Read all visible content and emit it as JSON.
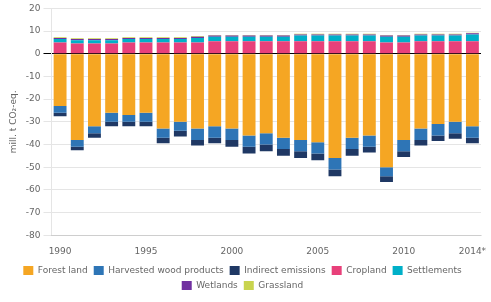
{
  "chart_data": {
    "type": "bar",
    "stacked": true,
    "y_label": "mill. t CO₂-eq.",
    "categories": [
      "1990",
      null,
      null,
      null,
      null,
      "1995",
      null,
      null,
      null,
      null,
      "2000",
      null,
      null,
      null,
      null,
      "2005",
      null,
      null,
      null,
      null,
      "2010",
      null,
      null,
      null,
      "2014*"
    ],
    "series": [
      {
        "name": "Forest land",
        "color": "#F5A623",
        "values": [
          -23,
          -38,
          -32,
          -26,
          -27,
          -26,
          -33,
          -30,
          -33,
          -32,
          -33,
          -36,
          -35,
          -37,
          -38,
          -39,
          -46,
          -37,
          -36,
          -50,
          -38,
          -33,
          -31,
          -30,
          -32
        ]
      },
      {
        "name": "Harvested wood products",
        "color": "#2E75B6",
        "values": [
          -3,
          -3,
          -3,
          -4,
          -3,
          -4,
          -4,
          -4,
          -5,
          -5,
          -5,
          -5,
          -5,
          -5,
          -5,
          -5,
          -5,
          -5,
          -5,
          -4,
          -5,
          -5,
          -5,
          -5,
          -5
        ]
      },
      {
        "name": "Indirect emissions",
        "color": "#1F3864",
        "values": [
          -1.5,
          -1.5,
          -2.0,
          -2.0,
          -2.0,
          -2.0,
          -2.5,
          -2.5,
          -2.5,
          -2.5,
          -3.0,
          -3.0,
          -3.0,
          -3.0,
          -3.0,
          -3.0,
          -3.0,
          -3.0,
          -2.5,
          -2.5,
          -2.5,
          -2.5,
          -2.5,
          -2.5,
          -2.5
        ]
      },
      {
        "name": "Cropland",
        "color": "#E8407A",
        "values": [
          5.0,
          4.5,
          4.5,
          4.5,
          5.0,
          5.0,
          5.0,
          5.0,
          5.0,
          5.5,
          5.5,
          5.5,
          5.5,
          5.5,
          5.5,
          5.5,
          5.5,
          5.5,
          5.5,
          5.0,
          5.0,
          5.5,
          5.5,
          5.5,
          5.5
        ]
      },
      {
        "name": "Settlements",
        "color": "#00B0C8",
        "values": [
          1.5,
          1.5,
          1.5,
          1.5,
          1.5,
          1.5,
          1.5,
          1.5,
          2.0,
          2.0,
          2.0,
          2.0,
          2.0,
          2.0,
          2.5,
          2.5,
          2.5,
          2.5,
          2.5,
          2.5,
          2.5,
          2.5,
          2.5,
          2.5,
          3.0
        ]
      },
      {
        "name": "Wetlands",
        "color": "#7030A0",
        "values": [
          0.5,
          0.5,
          0.5,
          0.5,
          0.5,
          0.5,
          0.5,
          0.5,
          0.5,
          0.5,
          0.5,
          0.5,
          0.5,
          0.5,
          0.5,
          0.5,
          0.5,
          0.5,
          0.5,
          0.5,
          0.5,
          0.5,
          0.5,
          0.5,
          0.5
        ]
      },
      {
        "name": "Grassland",
        "color": "#C9D44E",
        "values": [
          0.3,
          0.3,
          0.3,
          0.3,
          0.3,
          0.3,
          0.3,
          0.3,
          0.3,
          0.3,
          0.3,
          0.3,
          0.3,
          0.3,
          0.3,
          0.3,
          0.3,
          0.3,
          0.3,
          0.3,
          0.3,
          0.3,
          0.3,
          0.3,
          0.3
        ]
      }
    ],
    "ylim": [
      -80,
      20
    ],
    "yticks": [
      -80,
      -70,
      -60,
      -50,
      -40,
      -30,
      -20,
      -10,
      0,
      10,
      20
    ],
    "grid": true,
    "legend": "bottom"
  }
}
